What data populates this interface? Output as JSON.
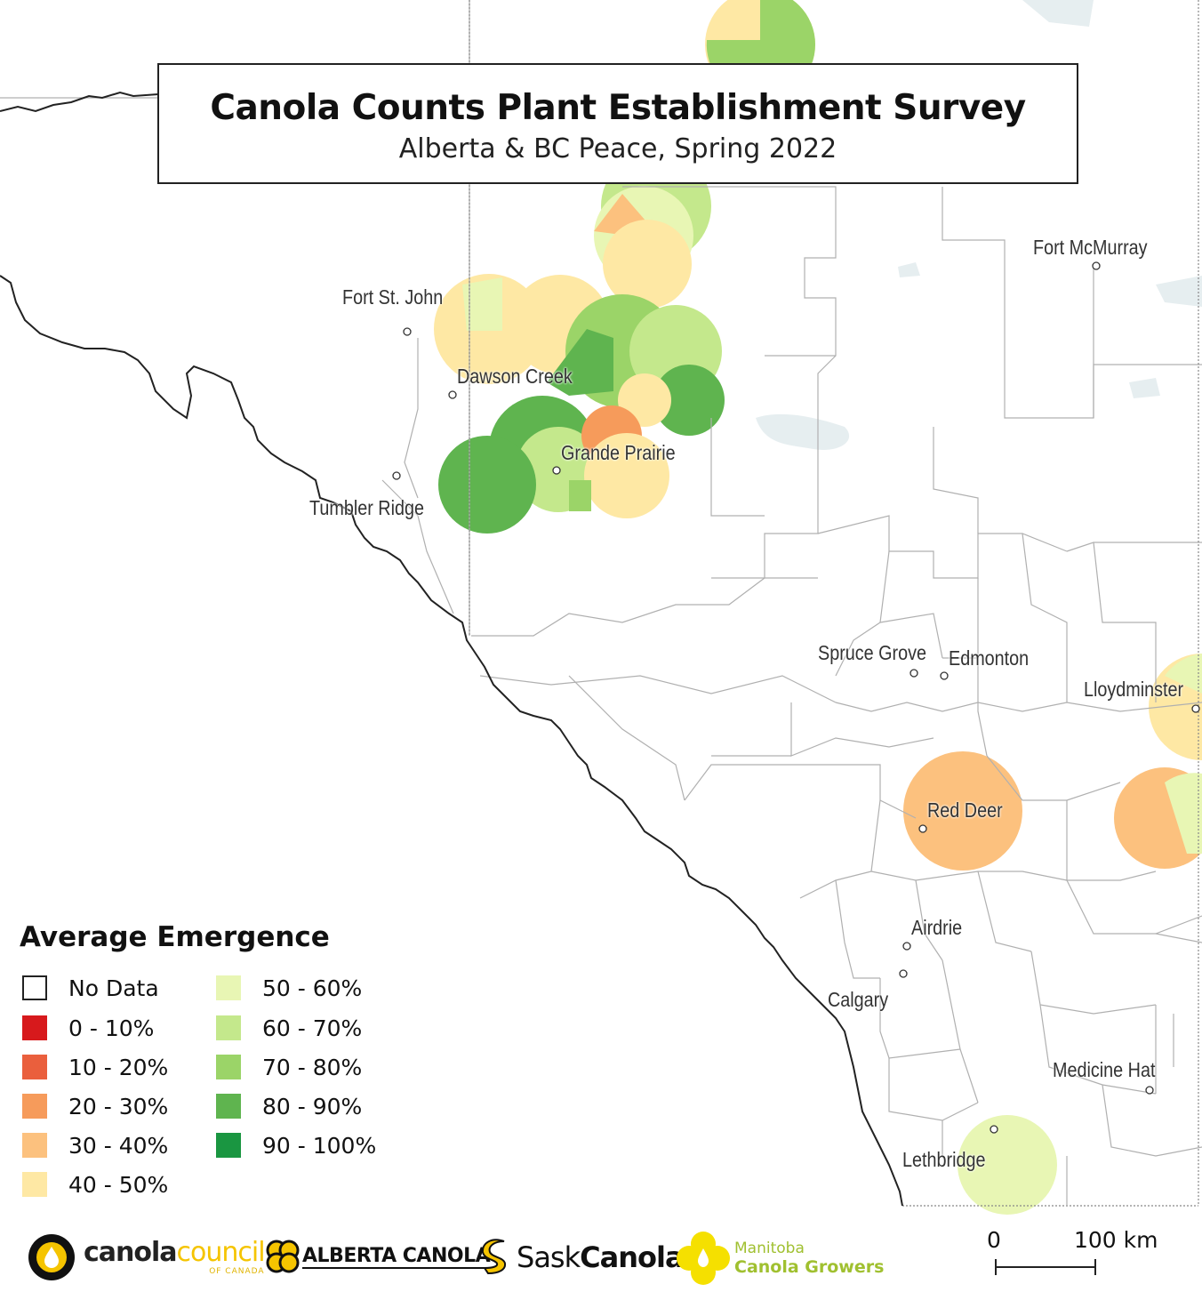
{
  "title": "Canola Counts Plant Establishment Survey",
  "subtitle": "Alberta & BC Peace, Spring 2022",
  "colors": {
    "no_data": "#ffffff",
    "r0_10": "#d7191c",
    "r10_20": "#ea5f3d",
    "r20_30": "#f69b5b",
    "r30_40": "#fcc17e",
    "r40_50": "#fee8a4",
    "r50_60": "#e8f6b4",
    "r60_70": "#c4e88c",
    "r70_80": "#9bd468",
    "r80_90": "#5fb44f",
    "r90_100": "#1a9641",
    "boundary": "#222222",
    "division_lines": "#aaaaaa",
    "water": "#e6eef0"
  },
  "cities": [
    {
      "name": "Fort McMurray"
    },
    {
      "name": "Fort St. John"
    },
    {
      "name": "Dawson Creek"
    },
    {
      "name": "Grande Prairie"
    },
    {
      "name": "Tumbler Ridge"
    },
    {
      "name": "Spruce Grove"
    },
    {
      "name": "Edmonton"
    },
    {
      "name": "Lloydminster"
    },
    {
      "name": "Red Deer"
    },
    {
      "name": "Airdrie"
    },
    {
      "name": "Calgary"
    },
    {
      "name": "Medicine Hat"
    },
    {
      "name": "Lethbridge"
    }
  ],
  "legend": {
    "title": "Average Emergence",
    "items": [
      {
        "label": "No Data",
        "color": "#ffffff"
      },
      {
        "label": "0 - 10%",
        "color": "#d7191c"
      },
      {
        "label": "10 - 20%",
        "color": "#ea5f3d"
      },
      {
        "label": "20 - 30%",
        "color": "#f69b5b"
      },
      {
        "label": "30 - 40%",
        "color": "#fcc17e"
      },
      {
        "label": "40 - 50%",
        "color": "#fee8a4"
      },
      {
        "label": "50 - 60%",
        "color": "#e8f6b4"
      },
      {
        "label": "60 - 70%",
        "color": "#c4e88c"
      },
      {
        "label": "70 - 80%",
        "color": "#9bd468"
      },
      {
        "label": "80 - 90%",
        "color": "#5fb44f"
      },
      {
        "label": "90 - 100%",
        "color": "#1a9641"
      }
    ]
  },
  "logos": {
    "ccc_main": "canola",
    "ccc_accent": "council",
    "ccc_sub": "OF CANADA",
    "alberta": "ALBERTA CANOLA",
    "sask_a": "Sask",
    "sask_b": "Canola",
    "mb_line1": "Manitoba",
    "mb_line2": "Canola Growers"
  },
  "scale": {
    "start": "0",
    "end": "100 km"
  }
}
